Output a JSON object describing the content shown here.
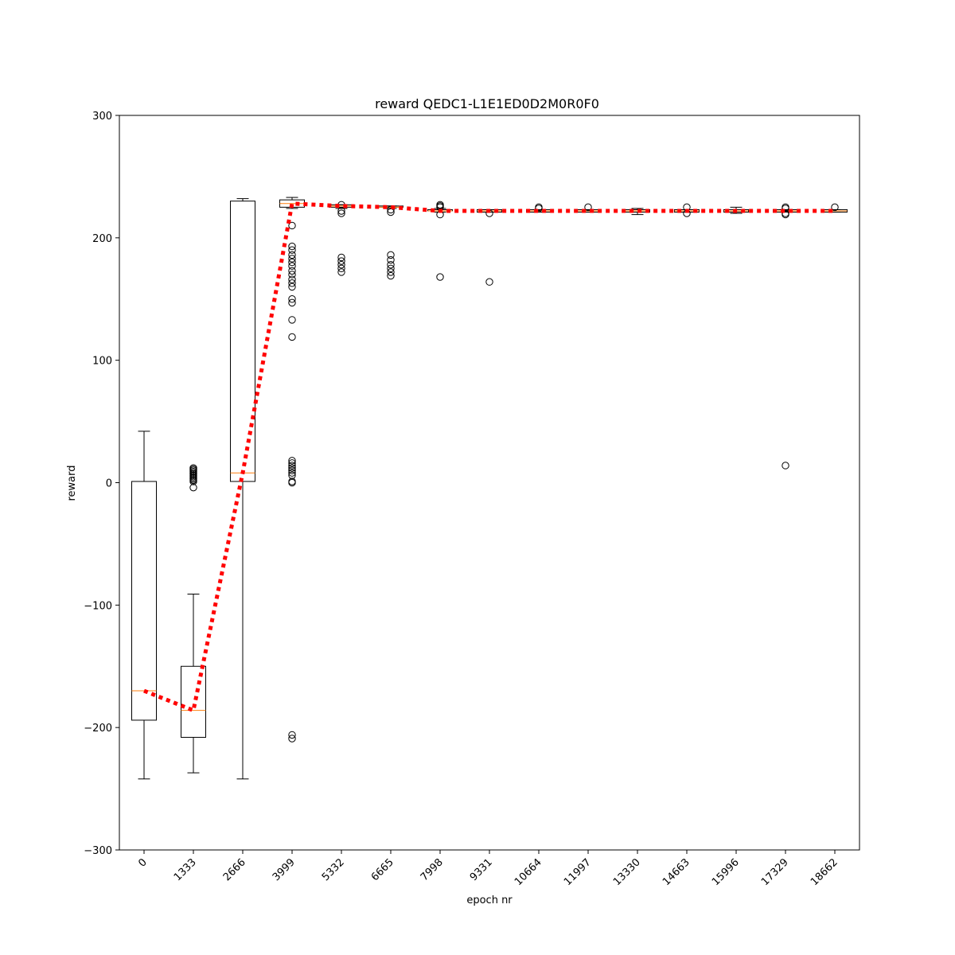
{
  "chart_data": {
    "type": "box",
    "title": "reward QEDC1-L1E1ED0D2M0R0F0",
    "xlabel": "epoch nr",
    "ylabel": "reward",
    "ylim": [
      -300,
      300
    ],
    "yticks": [
      -300,
      -200,
      -100,
      0,
      100,
      200,
      300
    ],
    "grid": false,
    "categories": [
      "0",
      "1333",
      "2666",
      "3999",
      "5332",
      "6665",
      "7998",
      "9331",
      "10664",
      "11997",
      "13330",
      "14663",
      "15996",
      "17329",
      "18662"
    ],
    "boxes": [
      {
        "whisker_low": -242,
        "q1": -194,
        "median": -170,
        "q3": 1,
        "whisker_high": 42,
        "outliers": []
      },
      {
        "whisker_low": -237,
        "q1": -208,
        "median": -186,
        "q3": -150,
        "whisker_high": -91,
        "outliers": [
          -4,
          1,
          2,
          3,
          4,
          5,
          6,
          7,
          8,
          9,
          10,
          11,
          12
        ]
      },
      {
        "whisker_low": -242,
        "q1": 1,
        "median": 8,
        "q3": 230,
        "whisker_high": 232,
        "outliers": []
      },
      {
        "whisker_low": 224,
        "q1": 225,
        "median": 228,
        "q3": 231,
        "whisker_high": 233,
        "outliers": [
          -209,
          -206,
          0,
          1,
          6,
          8,
          10,
          12,
          14,
          16,
          18,
          119,
          133,
          147,
          150,
          160,
          163,
          166,
          170,
          173,
          177,
          180,
          183,
          186,
          190,
          193,
          210
        ]
      },
      {
        "whisker_low": 224,
        "q1": 225,
        "median": 226,
        "q3": 227,
        "whisker_high": 227,
        "outliers": [
          172,
          175,
          178,
          181,
          184,
          220,
          222,
          227
        ]
      },
      {
        "whisker_low": 224,
        "q1": 225,
        "median": 225,
        "q3": 226,
        "whisker_high": 226,
        "outliers": [
          169,
          172,
          175,
          178,
          182,
          186,
          221,
          223
        ]
      },
      {
        "whisker_low": 221,
        "q1": 222,
        "median": 222,
        "q3": 223,
        "whisker_high": 224,
        "outliers": [
          168,
          219,
          225,
          226,
          227
        ]
      },
      {
        "whisker_low": 221,
        "q1": 221,
        "median": 222,
        "q3": 223,
        "whisker_high": 223,
        "outliers": [
          164,
          220
        ]
      },
      {
        "whisker_low": 221,
        "q1": 221,
        "median": 222,
        "q3": 223,
        "whisker_high": 223,
        "outliers": [
          224,
          225
        ]
      },
      {
        "whisker_low": 221,
        "q1": 221,
        "median": 222,
        "q3": 223,
        "whisker_high": 223,
        "outliers": [
          225
        ]
      },
      {
        "whisker_low": 219,
        "q1": 221,
        "median": 222,
        "q3": 223,
        "whisker_high": 224,
        "outliers": []
      },
      {
        "whisker_low": 221,
        "q1": 221,
        "median": 222,
        "q3": 223,
        "whisker_high": 223,
        "outliers": [
          220,
          225
        ]
      },
      {
        "whisker_low": 220,
        "q1": 221,
        "median": 222,
        "q3": 223,
        "whisker_high": 225,
        "outliers": []
      },
      {
        "whisker_low": 221,
        "q1": 221,
        "median": 222,
        "q3": 223,
        "whisker_high": 223,
        "outliers": [
          14,
          219,
          220,
          224,
          225
        ]
      },
      {
        "whisker_low": 221,
        "q1": 221,
        "median": 222,
        "q3": 223,
        "whisker_high": 223,
        "outliers": [
          225
        ]
      }
    ],
    "mean_line": {
      "color": "#ff0000",
      "style": "dotted",
      "values": [
        -170,
        -186,
        8,
        228,
        226,
        225,
        222,
        222,
        222,
        222,
        222,
        222,
        222,
        222,
        222
      ]
    },
    "colors": {
      "box": "#000000",
      "median": "#ff7f0e",
      "mean_line": "#ff0000"
    }
  }
}
